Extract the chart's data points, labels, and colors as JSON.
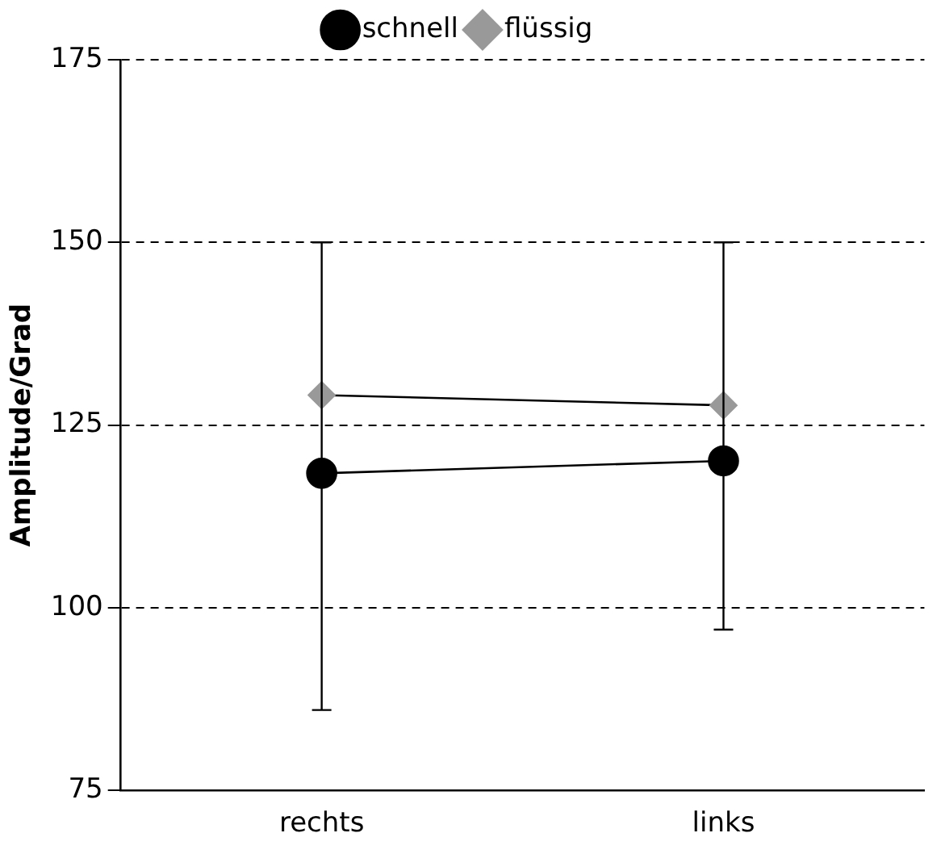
{
  "chart_data": {
    "type": "line",
    "ylabel": "Amplitude/Grad",
    "categories": [
      "rechts",
      "links"
    ],
    "series": [
      {
        "name": "schnell",
        "color": "#000000",
        "marker": "circle",
        "values": [
          118.4,
          120.1
        ],
        "errors": [
          [
            86,
            150
          ],
          [
            97,
            150
          ]
        ]
      },
      {
        "name": "flüssig",
        "color": "#999999",
        "marker": "diamond",
        "values": [
          129.1,
          127.7
        ]
      }
    ],
    "ylim": [
      75,
      175
    ],
    "yticks": [
      75,
      100,
      125,
      150,
      175
    ],
    "grid": "y",
    "legend": "top",
    "line_style": "solid"
  }
}
